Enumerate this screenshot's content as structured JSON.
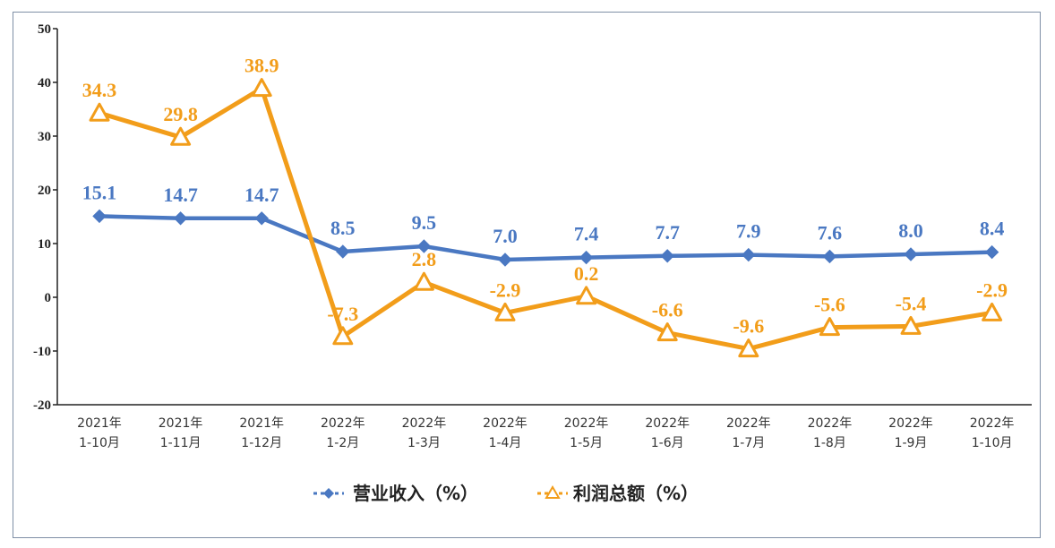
{
  "chart_data": {
    "type": "line",
    "title": "",
    "xlabel": "",
    "ylabel": "",
    "ylim": [
      -20,
      50
    ],
    "yticks": [
      50,
      40,
      30,
      20,
      10,
      0,
      -10,
      -20
    ],
    "categories": [
      [
        "2021年",
        "1-10月"
      ],
      [
        "2021年",
        "1-11月"
      ],
      [
        "2021年",
        "1-12月"
      ],
      [
        "2022年",
        "1-2月"
      ],
      [
        "2022年",
        "1-3月"
      ],
      [
        "2022年",
        "1-4月"
      ],
      [
        "2022年",
        "1-5月"
      ],
      [
        "2022年",
        "1-6月"
      ],
      [
        "2022年",
        "1-7月"
      ],
      [
        "2022年",
        "1-8月"
      ],
      [
        "2022年",
        "1-9月"
      ],
      [
        "2022年",
        "1-10月"
      ]
    ],
    "series": [
      {
        "name": "营业收入（%）",
        "color": "#4a78c2",
        "marker": "diamond",
        "values": [
          15.1,
          14.7,
          14.7,
          8.5,
          9.5,
          7.0,
          7.4,
          7.7,
          7.9,
          7.6,
          8.0,
          8.4
        ],
        "labels": [
          "15.1",
          "14.7",
          "14.7",
          "8.5",
          "9.5",
          "7.0",
          "7.4",
          "7.7",
          "7.9",
          "7.6",
          "8.0",
          "8.4"
        ]
      },
      {
        "name": "利润总额（%）",
        "color": "#f29d1a",
        "marker": "triangle",
        "values": [
          34.3,
          29.8,
          38.9,
          -7.3,
          2.8,
          -2.9,
          0.2,
          -6.6,
          -9.6,
          -5.6,
          -5.4,
          -2.9
        ],
        "labels": [
          "34.3",
          "29.8",
          "38.9",
          "-7.3",
          "2.8",
          "-2.9",
          "0.2",
          "-6.6",
          "-9.6",
          "-5.6",
          "-5.4",
          "-2.9"
        ]
      }
    ],
    "legend_position": "bottom-center"
  }
}
